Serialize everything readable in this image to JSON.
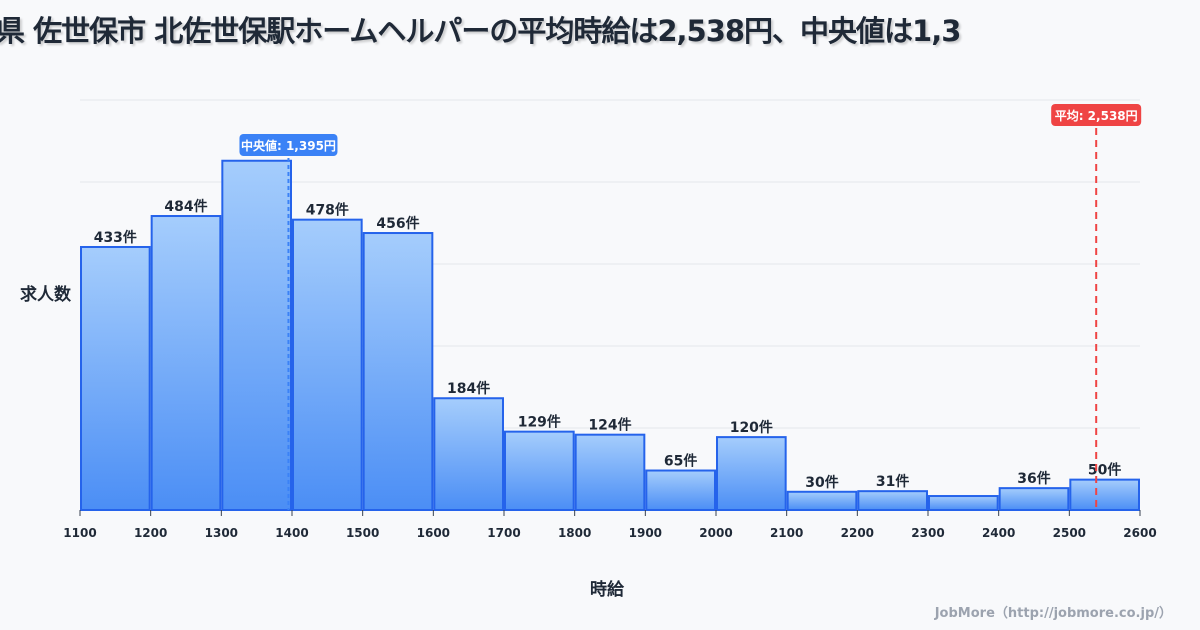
{
  "chart_data": {
    "type": "bar",
    "title": "県 佐世保市 北佐世保駅ホームヘルパーの平均時給は2,538円、中央値は1,3",
    "xlabel": "時給",
    "ylabel": "求人数",
    "x_ticks": [
      "1100",
      "1200",
      "1300",
      "1400",
      "1500",
      "1600",
      "1700",
      "1800",
      "1900",
      "2000",
      "2100",
      "2200",
      "2300",
      "2400",
      "2500",
      "2600"
    ],
    "bins": [
      [
        1100,
        1200
      ],
      [
        1200,
        1300
      ],
      [
        1300,
        1400
      ],
      [
        1400,
        1500
      ],
      [
        1500,
        1600
      ],
      [
        1600,
        1700
      ],
      [
        1700,
        1800
      ],
      [
        1800,
        1900
      ],
      [
        1900,
        2000
      ],
      [
        2000,
        2100
      ],
      [
        2100,
        2200
      ],
      [
        2200,
        2300
      ],
      [
        2300,
        2400
      ],
      [
        2400,
        2500
      ],
      [
        2500,
        2600
      ]
    ],
    "values": [
      433,
      484,
      575,
      478,
      456,
      184,
      129,
      124,
      65,
      120,
      30,
      31,
      23,
      36,
      50
    ],
    "labels": [
      "433件",
      "484件",
      "",
      "478件",
      "456件",
      "184件",
      "129件",
      "124件",
      "65件",
      "120件",
      "30件",
      "31件",
      "",
      "36件",
      "50件"
    ],
    "ylim": [
      0,
      675
    ],
    "xlim": [
      1100,
      2600
    ],
    "grid": true,
    "median": {
      "value": 1395,
      "label": "中央値: 1,395円",
      "color": "#3b82f6"
    },
    "mean": {
      "value": 2538,
      "label": "平均: 2,538円",
      "color": "#ef4444"
    },
    "bar_color": "#60a5fa",
    "bar_edge": "#2563eb"
  },
  "credit": "JobMore（http://jobmore.co.jp/）"
}
